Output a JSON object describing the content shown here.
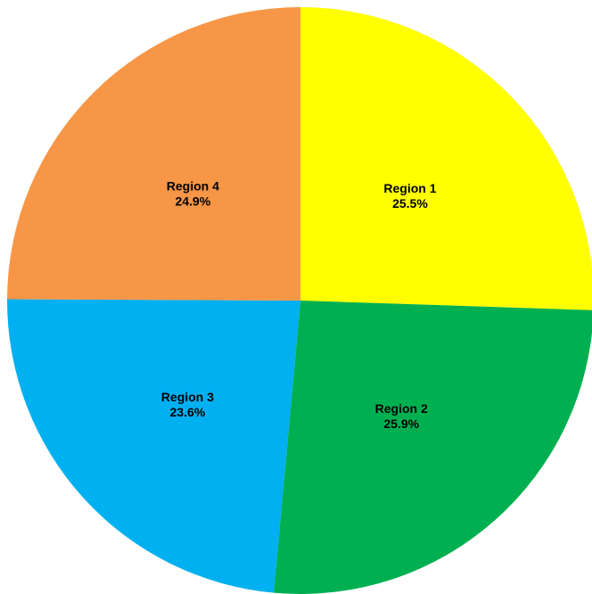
{
  "chart_data": {
    "type": "pie",
    "title": "",
    "start_angle_deg": 0,
    "direction": "clockwise",
    "slices": [
      {
        "label": "Region 1",
        "value": 25.5,
        "value_label": "25.5%",
        "color": "#FFFF00"
      },
      {
        "label": "Region 2",
        "value": 25.9,
        "value_label": "25.9%",
        "color": "#00B050"
      },
      {
        "label": "Region 3",
        "value": 23.6,
        "value_label": "23.6%",
        "color": "#00B0F0"
      },
      {
        "label": "Region 4",
        "value": 24.9,
        "value_label": "24.9%",
        "color": "#F79646"
      }
    ]
  }
}
